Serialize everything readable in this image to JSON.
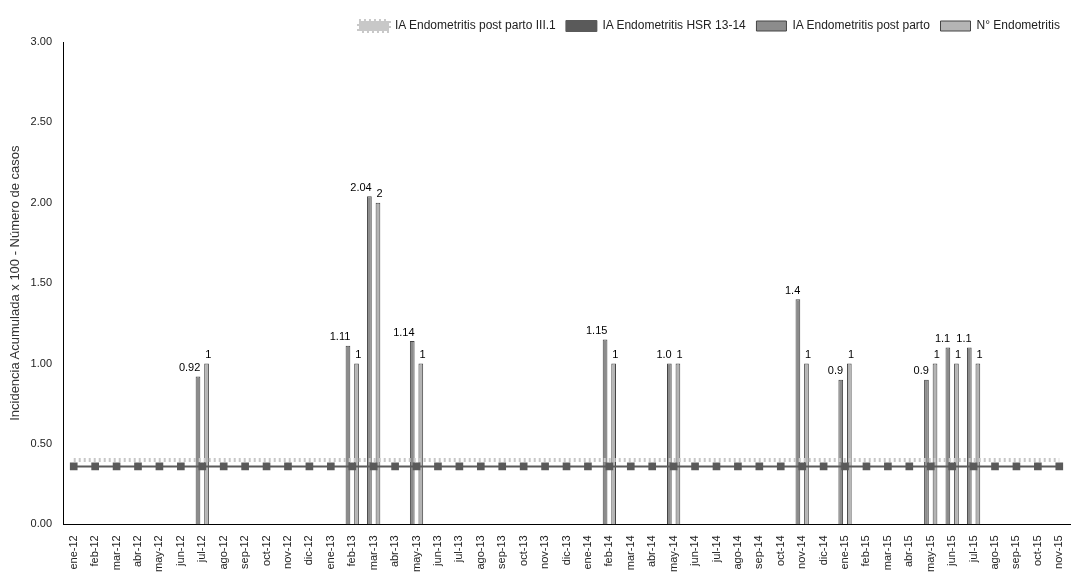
{
  "chart_data": {
    "type": "bar",
    "ylabel": "Incidencia Acumulada x 100 - Número de casos",
    "categories": [
      "ene-12",
      "feb-12",
      "mar-12",
      "abr-12",
      "may-12",
      "jun-12",
      "jul-12",
      "ago-12",
      "sep-12",
      "oct-12",
      "nov-12",
      "dic-12",
      "ene-13",
      "feb-13",
      "mar-13",
      "abr-13",
      "may-13",
      "jun-13",
      "jul-13",
      "ago-13",
      "sep-13",
      "oct-13",
      "nov-13",
      "dic-13",
      "ene-14",
      "feb-14",
      "mar-14",
      "abr-14",
      "may-14",
      "jun-14",
      "jul-14",
      "ago-14",
      "sep-14",
      "oct-14",
      "nov-14",
      "dic-14",
      "ene-15",
      "feb-15",
      "mar-15",
      "abr-15",
      "may-15",
      "jun-15",
      "jul-15",
      "ago-15",
      "sep-15",
      "oct-15",
      "nov-15"
    ],
    "series": [
      {
        "name": "IA Endometritis post parto",
        "color": "#8c8c8c",
        "values": [
          null,
          null,
          null,
          null,
          null,
          null,
          0.92,
          null,
          null,
          null,
          null,
          null,
          null,
          1.11,
          2.04,
          null,
          1.14,
          null,
          null,
          null,
          null,
          null,
          null,
          null,
          null,
          1.15,
          null,
          null,
          1.0,
          null,
          null,
          null,
          null,
          null,
          1.4,
          null,
          0.9,
          null,
          null,
          null,
          0.9,
          1.1,
          1.1,
          null,
          null,
          null,
          null
        ],
        "value_labels": [
          null,
          null,
          null,
          null,
          null,
          null,
          "0.92",
          null,
          null,
          null,
          null,
          null,
          null,
          "1.11",
          "2.04",
          null,
          "1.14",
          null,
          null,
          null,
          null,
          null,
          null,
          null,
          null,
          "1.15",
          null,
          null,
          "1.0",
          null,
          null,
          null,
          null,
          null,
          "1.4",
          null,
          "0.9",
          null,
          null,
          null,
          "0.9",
          "1.1",
          "1.1",
          null,
          null,
          null,
          null
        ]
      },
      {
        "name": "N° Endometritis",
        "color": "#b4b4b4",
        "values": [
          null,
          null,
          null,
          null,
          null,
          null,
          1,
          null,
          null,
          null,
          null,
          null,
          null,
          1,
          2,
          null,
          1,
          null,
          null,
          null,
          null,
          null,
          null,
          null,
          null,
          1,
          null,
          null,
          1,
          null,
          null,
          null,
          null,
          null,
          1,
          null,
          1,
          null,
          null,
          null,
          1,
          1,
          1,
          null,
          null,
          null,
          null
        ],
        "value_labels": [
          null,
          null,
          null,
          null,
          null,
          null,
          "1",
          null,
          null,
          null,
          null,
          null,
          null,
          "1",
          "2",
          null,
          "1",
          null,
          null,
          null,
          null,
          null,
          null,
          null,
          null,
          "1",
          null,
          null,
          "1",
          null,
          null,
          null,
          null,
          null,
          "1",
          null,
          "1",
          null,
          null,
          null,
          "1",
          "1",
          "1",
          null,
          null,
          null,
          null
        ]
      },
      {
        "name": "IA Endometritis post parto III.1",
        "type": "line",
        "color": "#c8c8c8",
        "marker": "none",
        "line_style": "dotted",
        "values": [
          0.4,
          0.4,
          0.4,
          0.4,
          0.4,
          0.4,
          0.4,
          0.4,
          0.4,
          0.4,
          0.4,
          0.4,
          0.4,
          0.4,
          0.4,
          0.4,
          0.4,
          0.4,
          0.4,
          0.4,
          0.4,
          0.4,
          0.4,
          0.4,
          0.4,
          0.4,
          0.4,
          0.4,
          0.4,
          0.4,
          0.4,
          0.4,
          0.4,
          0.4,
          0.4,
          0.4,
          0.4,
          0.4,
          0.4,
          0.4,
          0.4,
          0.4,
          0.4,
          0.4,
          0.4,
          0.4,
          0.4
        ]
      },
      {
        "name": "IA Endometritis HSR 13-14",
        "type": "line",
        "color": "#5a5a5a",
        "marker": "square",
        "line_style": "solid",
        "values": [
          0.36,
          0.36,
          0.36,
          0.36,
          0.36,
          0.36,
          0.36,
          0.36,
          0.36,
          0.36,
          0.36,
          0.36,
          0.36,
          0.36,
          0.36,
          0.36,
          0.36,
          0.36,
          0.36,
          0.36,
          0.36,
          0.36,
          0.36,
          0.36,
          0.36,
          0.36,
          0.36,
          0.36,
          0.36,
          0.36,
          0.36,
          0.36,
          0.36,
          0.36,
          0.36,
          0.36,
          0.36,
          0.36,
          0.36,
          0.36,
          0.36,
          0.36,
          0.36,
          0.36,
          0.36,
          0.36,
          0.36
        ]
      }
    ],
    "ylim": [
      0,
      3
    ],
    "yticks": [
      {
        "value": 0,
        "label": "0.00"
      },
      {
        "value": 0.5,
        "label": "0.50"
      },
      {
        "value": 1,
        "label": "1.00"
      },
      {
        "value": 1.5,
        "label": "1.50"
      },
      {
        "value": 2,
        "label": "2.00"
      },
      {
        "value": 2.5,
        "label": "2.50"
      },
      {
        "value": 3,
        "label": "3.00"
      }
    ],
    "grid": false,
    "legend": "top right"
  }
}
